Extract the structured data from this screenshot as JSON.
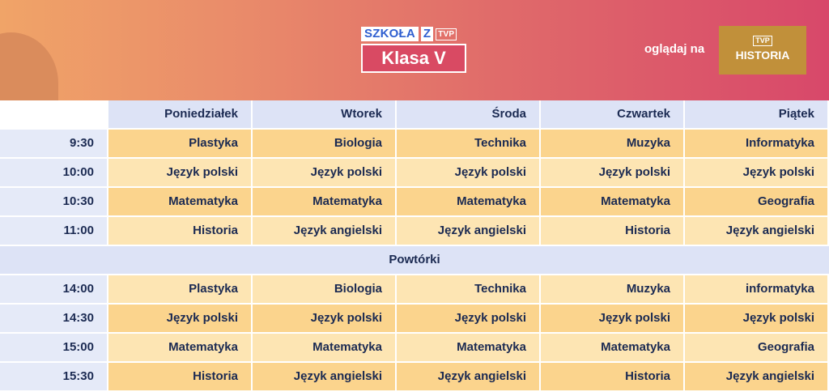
{
  "header": {
    "logo_szkola": "SZKOŁA",
    "logo_z": "Z",
    "logo_tvp": "TVP",
    "class_title": "Klasa V",
    "watch_label": "oglądaj na",
    "channel_tvp": "TVP",
    "channel_name": "HISTORIA"
  },
  "colors": {
    "header_gradient_start": "#f0a468",
    "header_gradient_end": "#d8486a",
    "lesson_dark": "#fbd48d",
    "lesson_light": "#fde5b3",
    "day_header": "#dde3f6",
    "time_cell": "#e5eaf8",
    "channel_box": "#c1903a",
    "text": "#1b2a52"
  },
  "schedule": {
    "days": [
      "Poniedziałek",
      "Wtorek",
      "Środa",
      "Czwartek",
      "Piątek"
    ],
    "morning": [
      {
        "time": "9:30",
        "lessons": [
          "Plastyka",
          "Biologia",
          "Technika",
          "Muzyka",
          "Informatyka"
        ]
      },
      {
        "time": "10:00",
        "lessons": [
          "Język polski",
          "Język polski",
          "Język polski",
          "Język polski",
          "Język polski"
        ]
      },
      {
        "time": "10:30",
        "lessons": [
          "Matematyka",
          "Matematyka",
          "Matematyka",
          "Matematyka",
          "Geografia"
        ]
      },
      {
        "time": "11:00",
        "lessons": [
          "Historia",
          "Język angielski",
          "Język angielski",
          "Historia",
          "Język angielski"
        ]
      }
    ],
    "repeats_label": "Powtórki",
    "afternoon": [
      {
        "time": "14:00",
        "lessons": [
          "Plastyka",
          "Biologia",
          "Technika",
          "Muzyka",
          "informatyka"
        ]
      },
      {
        "time": "14:30",
        "lessons": [
          "Język polski",
          "Język polski",
          "Język polski",
          "Język polski",
          "Język polski"
        ]
      },
      {
        "time": "15:00",
        "lessons": [
          "Matematyka",
          "Matematyka",
          "Matematyka",
          "Matematyka",
          "Geografia"
        ]
      },
      {
        "time": "15:30",
        "lessons": [
          "Historia",
          "Język angielski",
          "Język angielski",
          "Historia",
          "Język angielski"
        ]
      }
    ]
  }
}
